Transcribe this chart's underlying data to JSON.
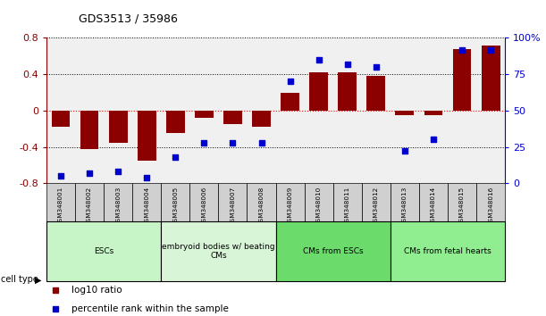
{
  "title": "GDS3513 / 35986",
  "samples": [
    "GSM348001",
    "GSM348002",
    "GSM348003",
    "GSM348004",
    "GSM348005",
    "GSM348006",
    "GSM348007",
    "GSM348008",
    "GSM348009",
    "GSM348010",
    "GSM348011",
    "GSM348012",
    "GSM348013",
    "GSM348014",
    "GSM348015",
    "GSM348016"
  ],
  "log10_ratio": [
    -0.18,
    -0.42,
    -0.35,
    -0.55,
    -0.25,
    -0.08,
    -0.15,
    -0.18,
    0.2,
    0.42,
    0.42,
    0.38,
    -0.05,
    -0.05,
    0.68,
    0.72
  ],
  "percentile_rank": [
    5,
    7,
    8,
    4,
    18,
    28,
    28,
    28,
    70,
    85,
    82,
    80,
    22,
    30,
    92,
    92
  ],
  "cell_type_groups": [
    {
      "label": "ESCs",
      "start": 0,
      "end": 3,
      "color": "#c8f5c8"
    },
    {
      "label": "embryoid bodies w/ beating\nCMs",
      "start": 4,
      "end": 7,
      "color": "#d8f5d8"
    },
    {
      "label": "CMs from ESCs",
      "start": 8,
      "end": 11,
      "color": "#6bdc6b"
    },
    {
      "label": "CMs from fetal hearts",
      "start": 12,
      "end": 15,
      "color": "#90ee90"
    }
  ],
  "ylim_left": [
    -0.8,
    0.8
  ],
  "ylim_right": [
    0,
    100
  ],
  "yticks_left": [
    -0.8,
    -0.4,
    0,
    0.4,
    0.8
  ],
  "yticks_right": [
    0,
    25,
    50,
    75,
    100
  ],
  "bar_color": "#8b0000",
  "dot_color": "#0000cc",
  "bg_color": "#ffffff",
  "plot_bg": "#f0f0f0",
  "sample_box_color": "#d0d0d0",
  "legend_ratio_label": "log10 ratio",
  "legend_pct_label": "percentile rank within the sample",
  "cell_type_label": "cell type"
}
